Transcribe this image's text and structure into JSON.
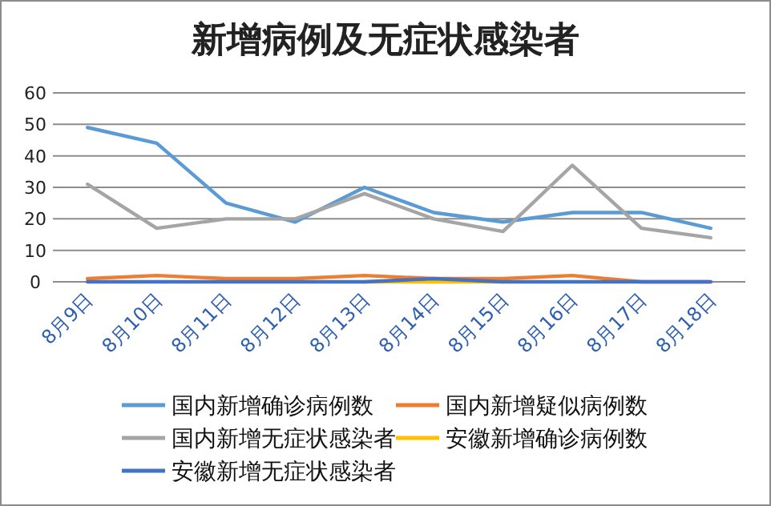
{
  "chart_data": {
    "type": "line",
    "title": "新增病例及无症状感染者",
    "categories": [
      "8月9日",
      "8月10日",
      "8月11日",
      "8月12日",
      "8月13日",
      "8月14日",
      "8月15日",
      "8月16日",
      "8月17日",
      "8月18日"
    ],
    "series": [
      {
        "name": "国内新增确诊病例数",
        "color": "#5b9bd5",
        "values": [
          49,
          44,
          25,
          19,
          30,
          22,
          19,
          22,
          22,
          17
        ]
      },
      {
        "name": "国内新增疑似病例数",
        "color": "#ed7d31",
        "values": [
          1,
          2,
          1,
          1,
          2,
          1,
          1,
          2,
          0,
          0
        ]
      },
      {
        "name": "国内新增无症状感染者",
        "color": "#a5a5a5",
        "values": [
          31,
          17,
          20,
          20,
          28,
          20,
          16,
          37,
          17,
          14
        ]
      },
      {
        "name": "安徽新增确诊病例数",
        "color": "#ffc000",
        "values": [
          null,
          null,
          null,
          null,
          0,
          0,
          0,
          null,
          null,
          null
        ]
      },
      {
        "name": "安徽新增无症状感染者",
        "color": "#4472c4",
        "values": [
          0,
          0,
          0,
          0,
          0,
          1,
          0,
          0,
          0,
          0
        ]
      }
    ],
    "ylim": [
      0,
      60
    ],
    "yticks": [
      0,
      10,
      20,
      30,
      40,
      50,
      60
    ],
    "grid": "y",
    "legend": "bottom",
    "marker": "none",
    "line_style": "solid"
  }
}
